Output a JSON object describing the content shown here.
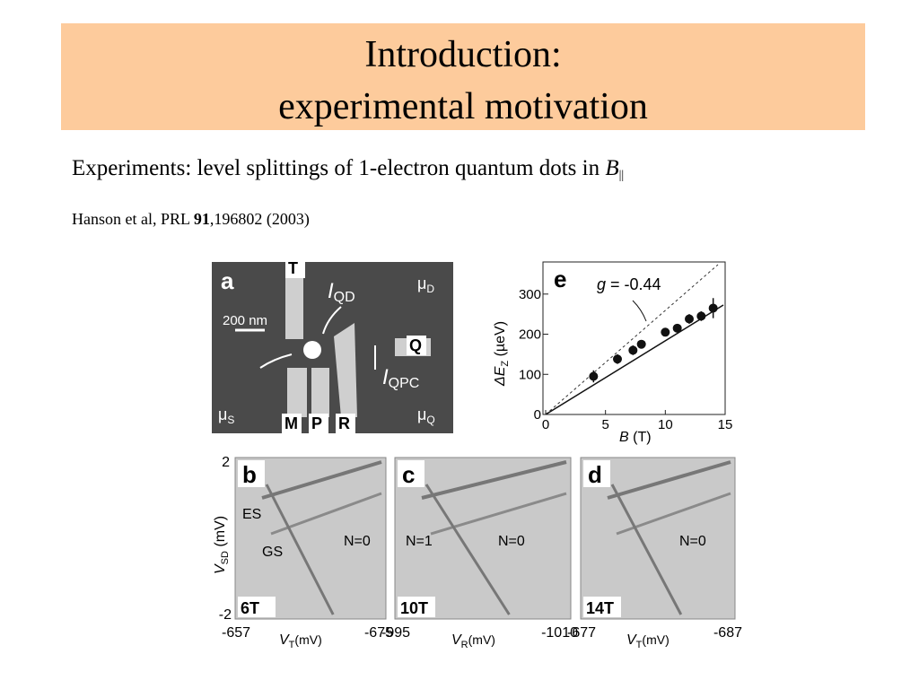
{
  "header": {
    "title": [
      "Introduction:",
      "experimental motivation"
    ]
  },
  "body": {
    "text": "Experiments: level splittings of 1-electron quantum dots in ",
    "symbol": "B",
    "subscript": "||"
  },
  "reference": {
    "authors": "Hanson et al, PRL ",
    "volume": "91",
    "rest": ",196802 (2003)"
  },
  "figure": {
    "panel_a": {
      "letter": "a",
      "gates": [
        "T",
        "M",
        "P",
        "R",
        "Q"
      ],
      "scale": "200 nm",
      "reservoirs": [
        {
          "symbol": "μ",
          "sub": "D"
        },
        {
          "symbol": "μ",
          "sub": "S"
        },
        {
          "symbol": "μ",
          "sub": "Q"
        }
      ],
      "currents": [
        {
          "symbol": "I",
          "sub": "QD"
        },
        {
          "symbol": "I",
          "sub": "QPC"
        }
      ]
    },
    "chart_data": {
      "type": "scatter",
      "label": "e",
      "x": [
        4,
        6,
        7.3,
        8,
        10,
        11,
        12,
        13,
        14
      ],
      "values": [
        95,
        138,
        160,
        175,
        205,
        215,
        238,
        245,
        265
      ],
      "errors": [
        15,
        12,
        12,
        10,
        10,
        10,
        12,
        12,
        25
      ],
      "xlim": [
        0,
        15
      ],
      "ylim": [
        0,
        380
      ],
      "xticks": [
        0,
        5,
        10,
        15
      ],
      "yticks": [
        0,
        100,
        200,
        300
      ],
      "xlabel": {
        "symbol": "B",
        "unit": " (T)"
      },
      "ylabel": {
        "symbol": "ΔE",
        "sub": "Z",
        "unit": " (µeV)"
      },
      "annotation": {
        "symbol": "g",
        "text": " = -0.44"
      },
      "color": "#111111"
    },
    "ylabel": {
      "symbol": "V",
      "sub": "SD",
      "unit": " (mV)"
    },
    "yticks": [
      2,
      -2
    ],
    "panels": [
      {
        "letter": "b",
        "field": "6T",
        "xticks": [
          -657,
          -675
        ],
        "xlabel": {
          "symbol": "V",
          "sub": "T",
          "unit": "(mV)"
        },
        "labels": [
          "ES",
          "GS",
          "N=0"
        ]
      },
      {
        "letter": "c",
        "field": "10T",
        "xticks": [
          -995,
          -1010
        ],
        "xlabel": {
          "symbol": "V",
          "sub": "R",
          "unit": "(mV)"
        },
        "labels": [
          "N=1",
          "N=0"
        ]
      },
      {
        "letter": "d",
        "field": "14T",
        "xticks": [
          -677,
          -687
        ],
        "xlabel": {
          "symbol": "V",
          "sub": "T",
          "unit": "(mV)"
        },
        "labels": [
          "N=0"
        ]
      }
    ]
  }
}
